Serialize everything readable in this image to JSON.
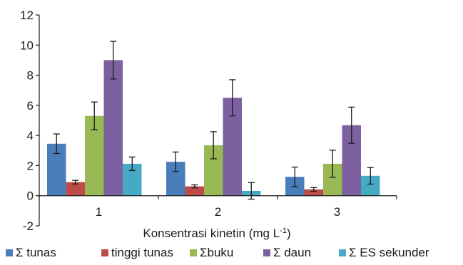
{
  "chart_data": {
    "type": "bar",
    "title": "",
    "categories": [
      "1",
      "2",
      "3"
    ],
    "xlabel": "Konsentrasi kinetin (mg L",
    "xlabel_sup": "-1",
    "xlabel_suffix": ")",
    "ylabel": "",
    "ylim": [
      -2,
      12
    ],
    "yticks": [
      12,
      10,
      8,
      6,
      4,
      2,
      0,
      -2
    ],
    "yticks_display": [
      "12",
      "10",
      "8",
      "6",
      "4",
      "2",
      "0",
      "-2"
    ],
    "grid": false,
    "legend_position": "bottom",
    "series": [
      {
        "name": "Σ tunas",
        "values": [
          3.45,
          2.25,
          1.25
        ],
        "errors": [
          0.65,
          0.65,
          0.65
        ],
        "color": "#4a7ebb"
      },
      {
        "name": "tinggi tunas",
        "values": [
          0.9,
          0.62,
          0.42
        ],
        "errors": [
          0.12,
          0.1,
          0.12
        ],
        "color": "#be4b48"
      },
      {
        "name": "Σbuku",
        "values": [
          5.3,
          3.35,
          2.12
        ],
        "errors": [
          0.92,
          0.9,
          0.9
        ],
        "color": "#98b954"
      },
      {
        "name": "Σ daun",
        "values": [
          9.0,
          6.5,
          4.68
        ],
        "errors": [
          1.25,
          1.2,
          1.2
        ],
        "color": "#7d60a0"
      },
      {
        "name": "Σ ES sekunder",
        "values": [
          2.12,
          0.32,
          1.32
        ],
        "errors": [
          0.45,
          0.55,
          0.55
        ],
        "color": "#46aac5"
      }
    ]
  }
}
